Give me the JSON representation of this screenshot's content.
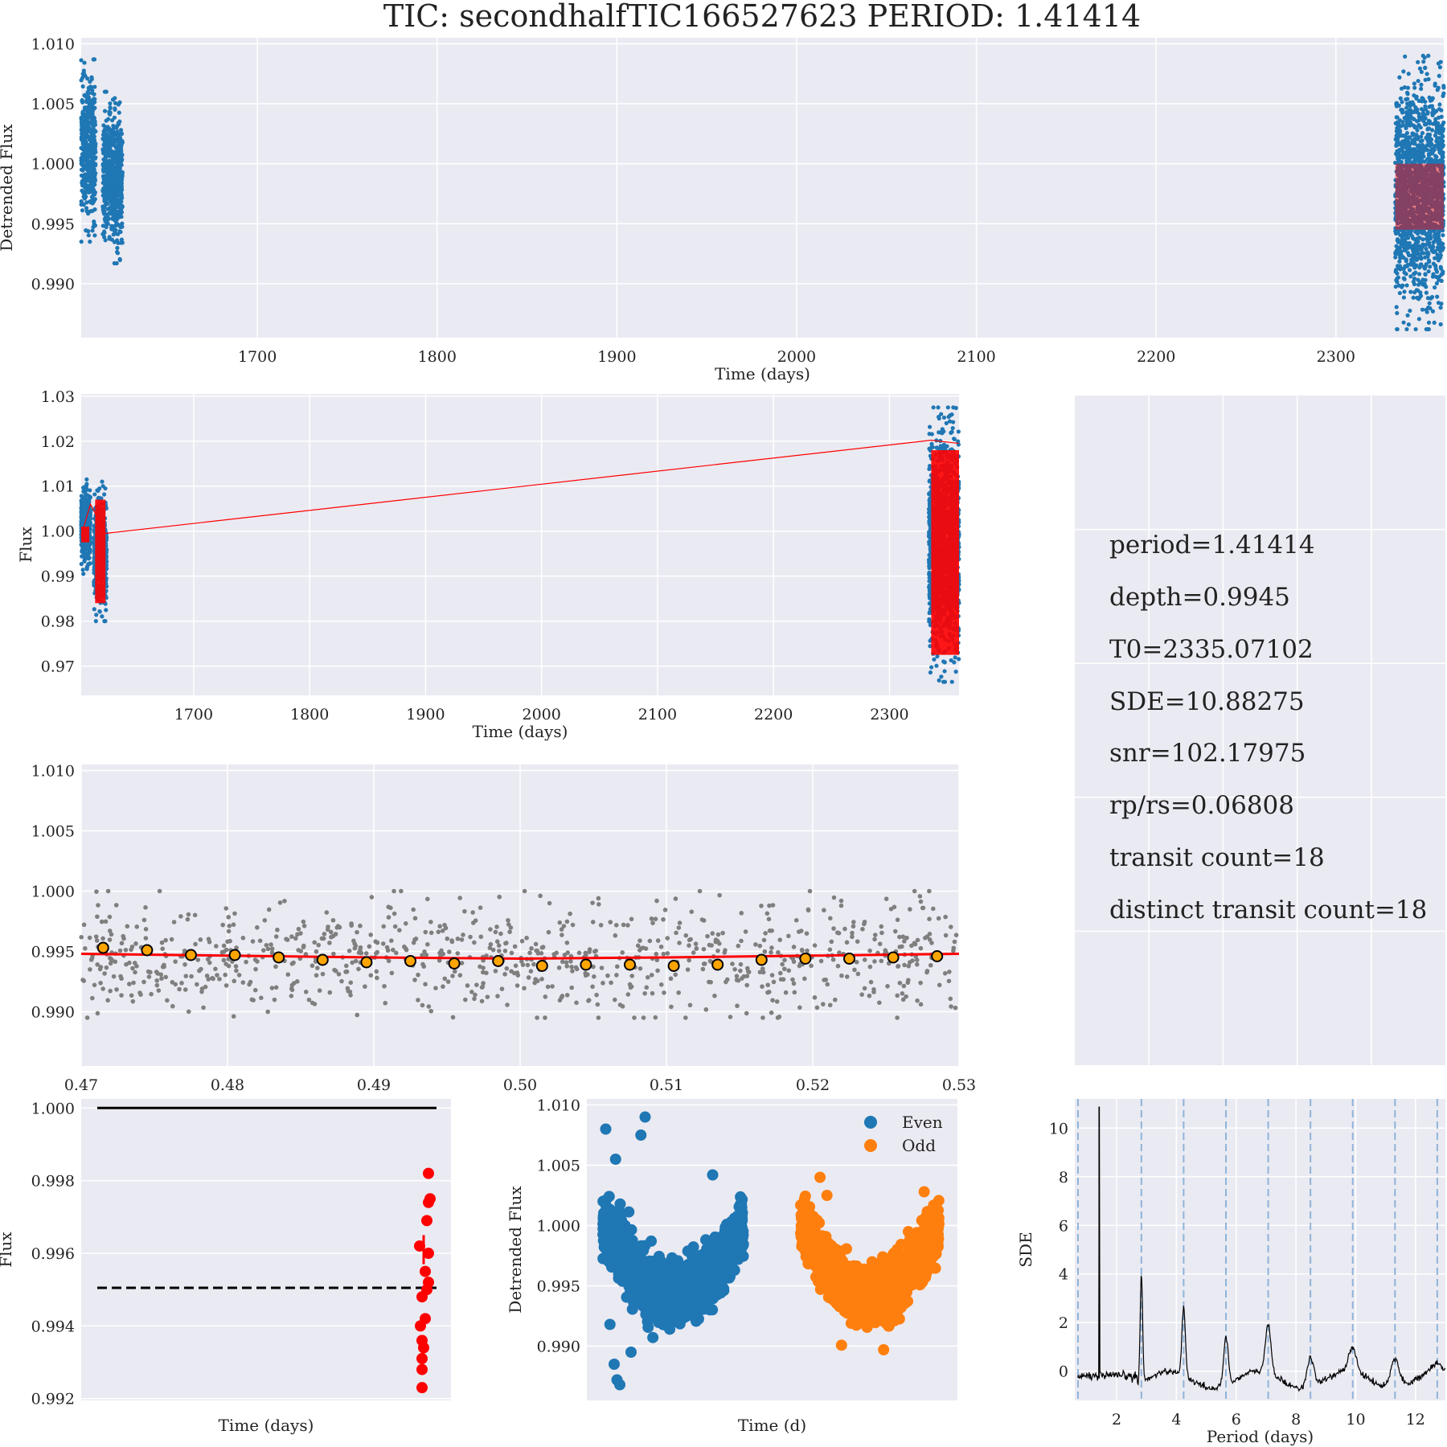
{
  "title": "TIC: secondhalfTIC166527623 PERIOD: 1.41414",
  "colors": {
    "blue": "#1f77b4",
    "orange": "#ff7f0e",
    "red": "#ff0000",
    "gray": "#7f7f7f",
    "marker_fill": "#ffa500",
    "panel_bg": "#eaeaf2",
    "dash_blue": "#8fb3d9"
  },
  "chart_data": [
    {
      "id": "detrended",
      "type": "scatter",
      "xlabel": "Time (days)",
      "ylabel": "Detrended Flux",
      "xlim": [
        1602,
        2360
      ],
      "ylim": [
        0.9855,
        1.0105
      ],
      "xticks": [
        1700,
        1800,
        1900,
        2000,
        2100,
        2200,
        2300
      ],
      "yticks": [
        0.99,
        0.995,
        1.0,
        1.005,
        1.01
      ],
      "ytick_labels": [
        "0.990",
        "0.995",
        "1.000",
        "1.005",
        "1.010"
      ],
      "series": [
        {
          "color": "blue",
          "segments": [
            {
              "x": [
                1602,
                1610
              ],
              "ymin": 0.9935,
              "ymax": 1.0087
            },
            {
              "x": [
                1614,
                1625
              ],
              "ymin": 0.9917,
              "ymax": 1.006
            },
            {
              "x": [
                2333,
                2360
              ],
              "ymin": 0.9862,
              "ymax": 1.009
            }
          ]
        },
        {
          "color": "red",
          "note_free": true,
          "band": {
            "x": [
              2333,
              2360
            ],
            "y": [
              0.9945,
              1.0
            ]
          }
        }
      ]
    },
    {
      "id": "flux_model",
      "type": "line",
      "xlabel": "Time (days)",
      "ylabel": "Flux",
      "xlim": [
        1603,
        2360
      ],
      "ylim": [
        0.9635,
        1.0305
      ],
      "xticks": [
        1700,
        1800,
        1900,
        2000,
        2100,
        2200,
        2300
      ],
      "yticks": [
        0.97,
        0.98,
        0.99,
        1.0,
        1.01,
        1.02,
        1.03
      ],
      "ytick_labels": [
        "0.97",
        "0.98",
        "0.99",
        "1.00",
        "1.01",
        "1.02",
        "1.03"
      ],
      "flux_segments": [
        {
          "x": [
            1603,
            1611
          ],
          "ymin": 0.9905,
          "ymax": 1.0115
        },
        {
          "x": [
            1614,
            1625
          ],
          "ymin": 0.98,
          "ymax": 1.011
        },
        {
          "x": [
            2334,
            2360
          ],
          "ymin": 0.9665,
          "ymax": 1.0275
        }
      ],
      "model_line": {
        "x": [
          1603,
          1611,
          1624,
          2336,
          2360
        ],
        "y": [
          0.999,
          1.006,
          0.9995,
          1.0202,
          1.0195
        ]
      },
      "model_bands": [
        {
          "x": [
            1603,
            1610
          ],
          "y": [
            0.9975,
            1.001
          ]
        },
        {
          "x": [
            1615,
            1624
          ],
          "y": [
            0.984,
            1.007
          ]
        },
        {
          "x": [
            2336,
            2360
          ],
          "y": [
            0.9725,
            1.018
          ]
        }
      ]
    },
    {
      "id": "phase_folded",
      "type": "scatter",
      "xlabel": "",
      "ylabel": "",
      "xlim": [
        0.47,
        0.53
      ],
      "ylim": [
        0.9855,
        1.0105
      ],
      "xticks": [
        0.47,
        0.48,
        0.49,
        0.5,
        0.51,
        0.52,
        0.53
      ],
      "xtick_labels": [
        "0.47",
        "0.48",
        "0.49",
        "0.50",
        "0.51",
        "0.52",
        "0.53"
      ],
      "yticks": [
        0.99,
        0.995,
        1.0,
        1.005,
        1.01
      ],
      "ytick_labels": [
        "0.990",
        "0.995",
        "1.000",
        "1.005",
        "1.010"
      ],
      "gray_cloud": {
        "center": 0.9945,
        "spread": 0.0023,
        "count": 900
      },
      "binned": {
        "x": [
          0.4715,
          0.4745,
          0.4775,
          0.4805,
          0.4835,
          0.4865,
          0.4895,
          0.4925,
          0.4955,
          0.4985,
          0.5015,
          0.5045,
          0.5075,
          0.5105,
          0.5135,
          0.5165,
          0.5195,
          0.5225,
          0.5255,
          0.5285
        ],
        "y": [
          0.9953,
          0.9951,
          0.9947,
          0.9947,
          0.9945,
          0.9943,
          0.9941,
          0.9942,
          0.994,
          0.9942,
          0.9938,
          0.9939,
          0.9939,
          0.9938,
          0.9939,
          0.9943,
          0.9944,
          0.9944,
          0.9945,
          0.9946
        ]
      },
      "model": {
        "x": [
          0.47,
          0.49,
          0.5,
          0.51,
          0.53
        ],
        "y": [
          0.9948,
          0.9945,
          0.9944,
          0.9945,
          0.9948
        ]
      }
    },
    {
      "id": "transit_depths",
      "type": "scatter",
      "xlabel": "Time (days)",
      "ylabel": "Flux",
      "ylim": [
        0.99195,
        1.00025
      ],
      "yticks": [
        0.992,
        0.994,
        0.996,
        0.998,
        1.0
      ],
      "ytick_labels": [
        "0.992",
        "0.994",
        "0.996",
        "0.998",
        "1.000"
      ],
      "reference_lines": [
        {
          "y": 1.0,
          "style": "solid"
        },
        {
          "y": 0.99505,
          "style": "dashed"
        }
      ],
      "red_points": [
        0.9982,
        0.9975,
        0.9974,
        0.9969,
        0.9962,
        0.996,
        0.9955,
        0.9952,
        0.995,
        0.9948,
        0.9942,
        0.994,
        0.9936,
        0.9934,
        0.9931,
        0.9928,
        0.9923
      ],
      "error_bar": {
        "y": 0.9961,
        "err": 0.0004
      }
    },
    {
      "id": "even_odd",
      "type": "scatter",
      "xlabel": "Time (d)",
      "ylabel": "Detrended Flux",
      "ylim": [
        0.9855,
        1.0105
      ],
      "yticks": [
        0.99,
        0.995,
        1.0,
        1.005,
        1.01
      ],
      "ytick_labels": [
        "0.990",
        "0.995",
        "1.000",
        "1.005",
        "1.010"
      ],
      "series": [
        {
          "name": "Even",
          "color": "blue"
        },
        {
          "name": "Odd",
          "color": "orange"
        }
      ]
    },
    {
      "id": "sde_periodogram",
      "type": "line",
      "xlabel": "Period (days)",
      "ylabel": "SDE",
      "xlim": [
        0.6,
        13.0
      ],
      "ylim": [
        -1.2,
        11.2
      ],
      "xticks": [
        2,
        4,
        6,
        8,
        10,
        12
      ],
      "yticks": [
        0,
        2,
        4,
        6,
        8,
        10
      ],
      "peak": {
        "period": 1.41414,
        "sde": 10.88
      },
      "harmonic_lines": [
        0.707,
        2.828,
        4.242,
        5.657,
        7.071,
        8.485,
        9.899,
        11.314,
        12.728
      ]
    }
  ],
  "info_box": {
    "lines": [
      "period=1.41414",
      "depth=0.9945",
      "T0=2335.07102",
      "SDE=10.88275",
      "snr=102.17975",
      "rp/rs=0.06808",
      "transit count=18",
      "distinct transit count=18"
    ]
  }
}
